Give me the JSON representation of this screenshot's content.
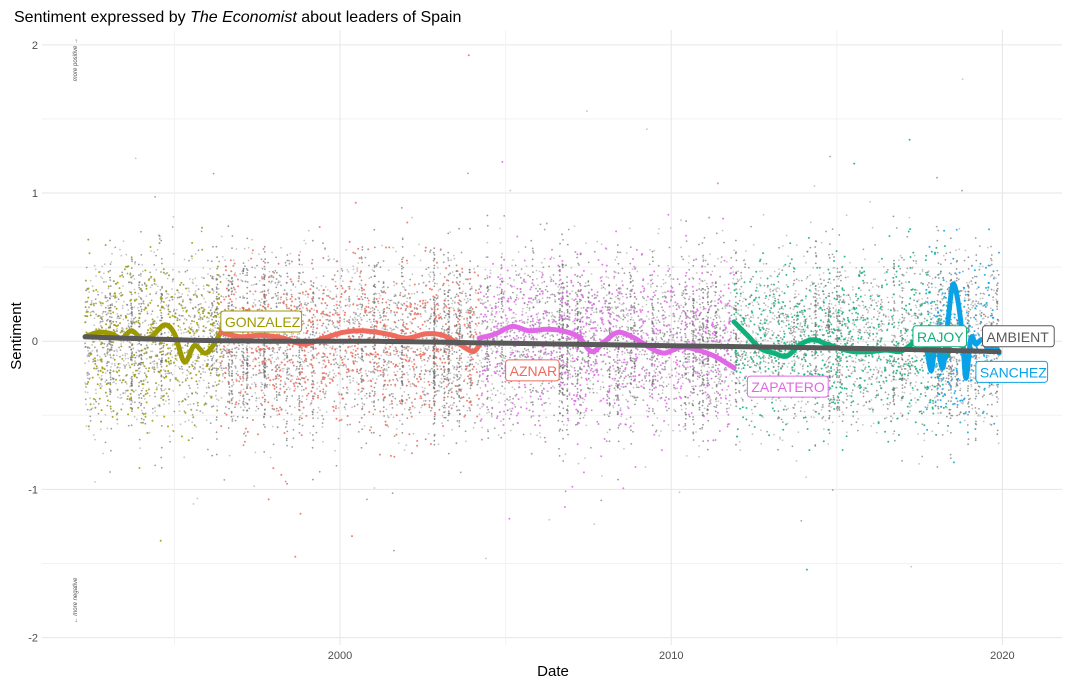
{
  "chart_data": {
    "type": "scatter",
    "title_prefix": "Sentiment expressed by ",
    "title_italic": "The Economist",
    "title_suffix": " about leaders of Spain",
    "xlabel": "Date",
    "ylabel": "Sentiment",
    "xlim": [
      1991.0,
      2021.8
    ],
    "ylim": [
      -2.05,
      2.1
    ],
    "x_ticks": [
      2000,
      2010,
      2020
    ],
    "x_tick_labels": [
      "2000",
      "2010",
      "2020"
    ],
    "y_ticks": [
      -2,
      -1,
      0,
      1,
      2
    ],
    "y_tick_labels": [
      "-2",
      "-1",
      "0",
      "1",
      "2"
    ],
    "grid": true,
    "legend": "none",
    "annotations": [
      {
        "text": "more positive →",
        "x": 1992.0,
        "y": 1.9
      },
      {
        "text": "← more negative",
        "x": 1992.0,
        "y": -1.75
      }
    ],
    "ambient_color": "#595959",
    "scatter_spread": 0.28,
    "series": [
      {
        "name": "GONZALEZ",
        "color": "#9c9a00",
        "start": 1992.3,
        "end": 1996.4,
        "smooth": [
          [
            1992.3,
            0.03
          ],
          [
            1992.7,
            0.06
          ],
          [
            1993.1,
            0.05
          ],
          [
            1993.4,
            0.02
          ],
          [
            1993.7,
            0.07
          ],
          [
            1994.0,
            0.02
          ],
          [
            1994.3,
            0.03
          ],
          [
            1994.7,
            0.11
          ],
          [
            1995.0,
            0.05
          ],
          [
            1995.3,
            -0.14
          ],
          [
            1995.6,
            -0.03
          ],
          [
            1995.9,
            -0.08
          ],
          [
            1996.1,
            -0.05
          ],
          [
            1996.4,
            0.06
          ]
        ],
        "label_x": 1996.4,
        "label_y": 0.13
      },
      {
        "name": "AZNAR",
        "color": "#ee6b5d",
        "start": 1996.4,
        "end": 2004.2,
        "smooth": [
          [
            1996.4,
            0.06
          ],
          [
            1997.0,
            0.03
          ],
          [
            1997.6,
            0.04
          ],
          [
            1998.3,
            0.02
          ],
          [
            1998.9,
            -0.02
          ],
          [
            1999.5,
            0.02
          ],
          [
            2000.1,
            0.06
          ],
          [
            2000.7,
            0.07
          ],
          [
            2001.4,
            0.05
          ],
          [
            2002.0,
            0.02
          ],
          [
            2002.6,
            0.05
          ],
          [
            2003.1,
            0.04
          ],
          [
            2003.6,
            -0.02
          ],
          [
            2004.0,
            -0.07
          ],
          [
            2004.2,
            -0.03
          ]
        ],
        "label_x": 2005.0,
        "label_y": -0.2
      },
      {
        "name": "ZAPATERO",
        "color": "#e068e7",
        "start": 2004.2,
        "end": 2011.9,
        "smooth": [
          [
            2004.2,
            0.02
          ],
          [
            2004.7,
            0.05
          ],
          [
            2005.2,
            0.1
          ],
          [
            2005.7,
            0.07
          ],
          [
            2006.2,
            0.08
          ],
          [
            2006.7,
            0.07
          ],
          [
            2007.2,
            0.03
          ],
          [
            2007.6,
            -0.07
          ],
          [
            2008.0,
            0.0
          ],
          [
            2008.4,
            0.06
          ],
          [
            2008.9,
            0.02
          ],
          [
            2009.4,
            -0.05
          ],
          [
            2009.8,
            -0.08
          ],
          [
            2010.3,
            -0.04
          ],
          [
            2010.8,
            -0.06
          ],
          [
            2011.3,
            -0.1
          ],
          [
            2011.9,
            -0.18
          ]
        ],
        "label_x": 2012.3,
        "label_y": -0.31
      },
      {
        "name": "RAJOY",
        "color": "#0fb07a",
        "start": 2011.9,
        "end": 2018.4,
        "smooth": [
          [
            2011.9,
            0.13
          ],
          [
            2012.3,
            0.04
          ],
          [
            2012.7,
            -0.05
          ],
          [
            2013.1,
            -0.08
          ],
          [
            2013.5,
            -0.1
          ],
          [
            2013.9,
            -0.02
          ],
          [
            2014.3,
            0.01
          ],
          [
            2014.7,
            -0.02
          ],
          [
            2015.1,
            -0.05
          ],
          [
            2015.5,
            -0.07
          ],
          [
            2016.0,
            -0.07
          ],
          [
            2016.5,
            -0.06
          ],
          [
            2016.9,
            -0.07
          ],
          [
            2017.2,
            -0.03
          ],
          [
            2017.5,
            0.02
          ],
          [
            2017.7,
            -0.05
          ],
          [
            2017.85,
            -0.18
          ],
          [
            2017.95,
            0.02
          ],
          [
            2018.1,
            -0.06
          ],
          [
            2018.25,
            -0.12
          ],
          [
            2018.4,
            -0.05
          ]
        ],
        "label_x": 2017.3,
        "label_y": 0.03
      },
      {
        "name": "SANCHEZ",
        "color": "#0aa2e6",
        "start": 2017.7,
        "end": 2019.9,
        "smooth": [
          [
            2017.7,
            0.0
          ],
          [
            2017.85,
            -0.2
          ],
          [
            2018.0,
            0.0
          ],
          [
            2018.2,
            -0.18
          ],
          [
            2018.35,
            0.12
          ],
          [
            2018.5,
            0.38
          ],
          [
            2018.65,
            0.28
          ],
          [
            2018.8,
            0.02
          ],
          [
            2018.9,
            -0.25
          ],
          [
            2019.05,
            0.02
          ],
          [
            2019.2,
            -0.02
          ],
          [
            2019.4,
            0.01
          ],
          [
            2019.6,
            -0.07
          ],
          [
            2019.75,
            -0.02
          ],
          [
            2019.9,
            -0.08
          ]
        ],
        "label_x": 2019.2,
        "label_y": -0.21
      },
      {
        "name": "AMBIENT",
        "color": "#595959",
        "start": 1992.3,
        "end": 2019.9,
        "smooth": [
          [
            1992.3,
            0.03
          ],
          [
            1995.0,
            0.01
          ],
          [
            1998.0,
            0.0
          ],
          [
            2001.0,
            0.0
          ],
          [
            2004.0,
            -0.01
          ],
          [
            2007.0,
            -0.02
          ],
          [
            2010.0,
            -0.03
          ],
          [
            2013.0,
            -0.04
          ],
          [
            2016.0,
            -0.05
          ],
          [
            2019.9,
            -0.07
          ]
        ],
        "label_x": 2019.4,
        "label_y": 0.03
      }
    ]
  }
}
